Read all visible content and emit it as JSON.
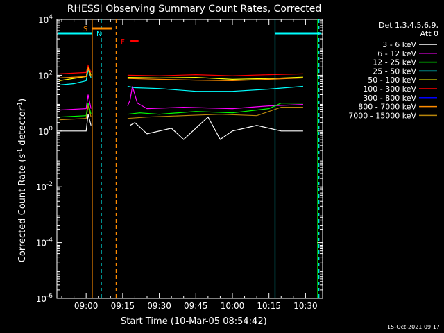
{
  "chart_data": {
    "type": "line",
    "title": "RHESSI Observing Summary Count Rates, Corrected",
    "xlabel": "Start Time (10-Mar-05 08:54:42)",
    "ylabel": "Corrected Count Rate (s⁻¹ detector⁻¹)",
    "yscale": "log",
    "ylim_exp": [
      -6,
      4
    ],
    "xlim_min": [
      -12,
      97
    ],
    "x_ticks": [
      {
        "min": 0,
        "label": "09:00"
      },
      {
        "min": 15,
        "label": "09:15"
      },
      {
        "min": 30,
        "label": "09:30"
      },
      {
        "min": 45,
        "label": "09:45"
      },
      {
        "min": 60,
        "label": "10:00"
      },
      {
        "min": 75,
        "label": "10:15"
      },
      {
        "min": 90,
        "label": "10:30"
      }
    ],
    "y_ticks": [
      {
        "exp": 4,
        "base": "10",
        "sup": "4"
      },
      {
        "exp": 2,
        "base": "10",
        "sup": "2"
      },
      {
        "exp": 0,
        "base": "10",
        "sup": "0"
      },
      {
        "exp": -2,
        "base": "10",
        "sup": "-2"
      },
      {
        "exp": -4,
        "base": "10",
        "sup": "-4"
      },
      {
        "exp": -6,
        "base": "10",
        "sup": "-6"
      }
    ],
    "legend": {
      "header_line1": "Det 1,3,4,5,6,9,",
      "header_line2": "Att 0",
      "placement": "right"
    },
    "series": [
      {
        "name": "3 - 6 keV",
        "color": "#ffffff",
        "points": [
          [
            -11,
            0.0
          ],
          [
            0,
            0.0
          ],
          [
            0.8,
            0.6
          ],
          [
            2,
            0.2
          ],
          [
            2.5,
            -9
          ],
          [
            16,
            -9
          ],
          [
            18,
            0.2
          ],
          [
            20,
            0.3
          ],
          [
            25,
            -0.1
          ],
          [
            35,
            0.1
          ],
          [
            40,
            -0.3
          ],
          [
            45,
            0.1
          ],
          [
            50,
            0.5
          ],
          [
            55,
            -0.3
          ],
          [
            60,
            0.0
          ],
          [
            70,
            0.2
          ],
          [
            80,
            0.0
          ],
          [
            89,
            0.0
          ],
          [
            89.5,
            -9
          ]
        ]
      },
      {
        "name": "6 - 12 keV",
        "color": "#ff00ff",
        "points": [
          [
            -11,
            0.75
          ],
          [
            0,
            0.8
          ],
          [
            0.8,
            1.3
          ],
          [
            2,
            0.8
          ],
          [
            2.5,
            -9
          ],
          [
            16,
            -9
          ],
          [
            17,
            0.9
          ],
          [
            18,
            1.1
          ],
          [
            19,
            1.6
          ],
          [
            21,
            1.0
          ],
          [
            25,
            0.8
          ],
          [
            40,
            0.85
          ],
          [
            60,
            0.8
          ],
          [
            75,
            0.9
          ],
          [
            89,
            0.95
          ],
          [
            89.5,
            -9
          ]
        ]
      },
      {
        "name": "12 - 25 keV",
        "color": "#00ff00",
        "points": [
          [
            -11,
            0.5
          ],
          [
            0,
            0.55
          ],
          [
            0.8,
            1.0
          ],
          [
            2,
            0.6
          ],
          [
            2.5,
            -9
          ],
          [
            16,
            -9
          ],
          [
            17,
            0.6
          ],
          [
            22,
            0.65
          ],
          [
            30,
            0.6
          ],
          [
            45,
            0.7
          ],
          [
            60,
            0.65
          ],
          [
            75,
            0.8
          ],
          [
            80,
            1.0
          ],
          [
            89,
            1.0
          ],
          [
            89.5,
            -9
          ]
        ]
      },
      {
        "name": "25 - 50 keV",
        "color": "#00ffff",
        "points": [
          [
            -11,
            1.65
          ],
          [
            -5,
            1.7
          ],
          [
            0,
            1.8
          ],
          [
            0.8,
            2.2
          ],
          [
            2,
            1.9
          ],
          [
            2.5,
            -9
          ],
          [
            16,
            -9
          ],
          [
            17,
            1.6
          ],
          [
            20,
            1.55
          ],
          [
            30,
            1.52
          ],
          [
            45,
            1.42
          ],
          [
            60,
            1.42
          ],
          [
            75,
            1.5
          ],
          [
            89,
            1.6
          ],
          [
            89.5,
            -9
          ]
        ]
      },
      {
        "name": "50 - 100 keV",
        "color": "#ffff00",
        "points": [
          [
            -11,
            1.8
          ],
          [
            0,
            1.95
          ],
          [
            0.8,
            2.3
          ],
          [
            2,
            2.0
          ],
          [
            2.5,
            -9
          ],
          [
            16,
            -9
          ],
          [
            17,
            1.92
          ],
          [
            30,
            1.9
          ],
          [
            45,
            1.92
          ],
          [
            60,
            1.85
          ],
          [
            75,
            1.88
          ],
          [
            89,
            1.93
          ],
          [
            89.5,
            -9
          ]
        ]
      },
      {
        "name": "100 - 300 keV",
        "color": "#ff0000",
        "points": [
          [
            -11,
            2.05
          ],
          [
            0,
            2.1
          ],
          [
            0.8,
            2.35
          ],
          [
            2,
            2.1
          ],
          [
            2.5,
            -9
          ],
          [
            16,
            -9
          ],
          [
            17,
            2.0
          ],
          [
            30,
            1.98
          ],
          [
            45,
            2.02
          ],
          [
            60,
            1.98
          ],
          [
            75,
            2.02
          ],
          [
            89,
            2.05
          ],
          [
            89.5,
            -9
          ]
        ]
      },
      {
        "name": "300 - 800 keV",
        "color": "#0000ff",
        "points": []
      },
      {
        "name": "800 - 7000 keV",
        "color": "#ff8c00",
        "points": [
          [
            -11,
            1.9
          ],
          [
            0,
            1.95
          ],
          [
            0.8,
            2.25
          ],
          [
            2,
            1.95
          ],
          [
            2.5,
            -9
          ],
          [
            16,
            -9
          ],
          [
            17,
            1.88
          ],
          [
            30,
            1.85
          ],
          [
            45,
            1.82
          ],
          [
            60,
            1.8
          ],
          [
            75,
            1.85
          ],
          [
            89,
            1.9
          ],
          [
            89.5,
            -9
          ]
        ]
      },
      {
        "name": "7000 - 15000 keV",
        "color": "#b8860b",
        "points": [
          [
            -11,
            0.4
          ],
          [
            0,
            0.45
          ],
          [
            0.8,
            0.9
          ],
          [
            2,
            0.5
          ],
          [
            2.5,
            -9
          ],
          [
            16,
            -9
          ],
          [
            17,
            0.45
          ],
          [
            25,
            0.5
          ],
          [
            40,
            0.55
          ],
          [
            55,
            0.6
          ],
          [
            70,
            0.55
          ],
          [
            80,
            0.85
          ],
          [
            89,
            0.85
          ],
          [
            89.5,
            -9
          ]
        ]
      }
    ],
    "intervals": [
      {
        "label": "S",
        "color": "#ff8c00",
        "line_color": "#ff8c00",
        "x0": 2.5,
        "x1": 10.5,
        "row": 1,
        "line_style": "solid",
        "draw_left_line": true,
        "draw_right_line": true,
        "right_line_style": "dashed"
      },
      {
        "label": "N",
        "color": "#00ffff",
        "x0": -11.5,
        "x1": 2.5,
        "row": 2,
        "line_style": "none"
      },
      {
        "label": "",
        "color": "#00ffff",
        "x0": 77.5,
        "x1": 96.5,
        "row": 2,
        "line_style": "none"
      },
      {
        "label": "F",
        "color": "#ff0000",
        "x0": 18.2,
        "x1": 21.5,
        "row": 3,
        "line_style": "none"
      }
    ],
    "vlines": [
      {
        "x": 2.5,
        "color": "#ff8c00",
        "dash": false
      },
      {
        "x": 6.2,
        "color": "#00ffff",
        "dash": true
      },
      {
        "x": 12.3,
        "color": "#ff8c00",
        "dash": true
      },
      {
        "x": 77.5,
        "color": "#00ffff",
        "dash": false
      },
      {
        "x": 95.5,
        "color": "#00ffff",
        "dash": true
      },
      {
        "x": 95.0,
        "color": "#00ff00",
        "dash": false
      }
    ],
    "timestamp": "15-Oct-2021 09:17"
  }
}
